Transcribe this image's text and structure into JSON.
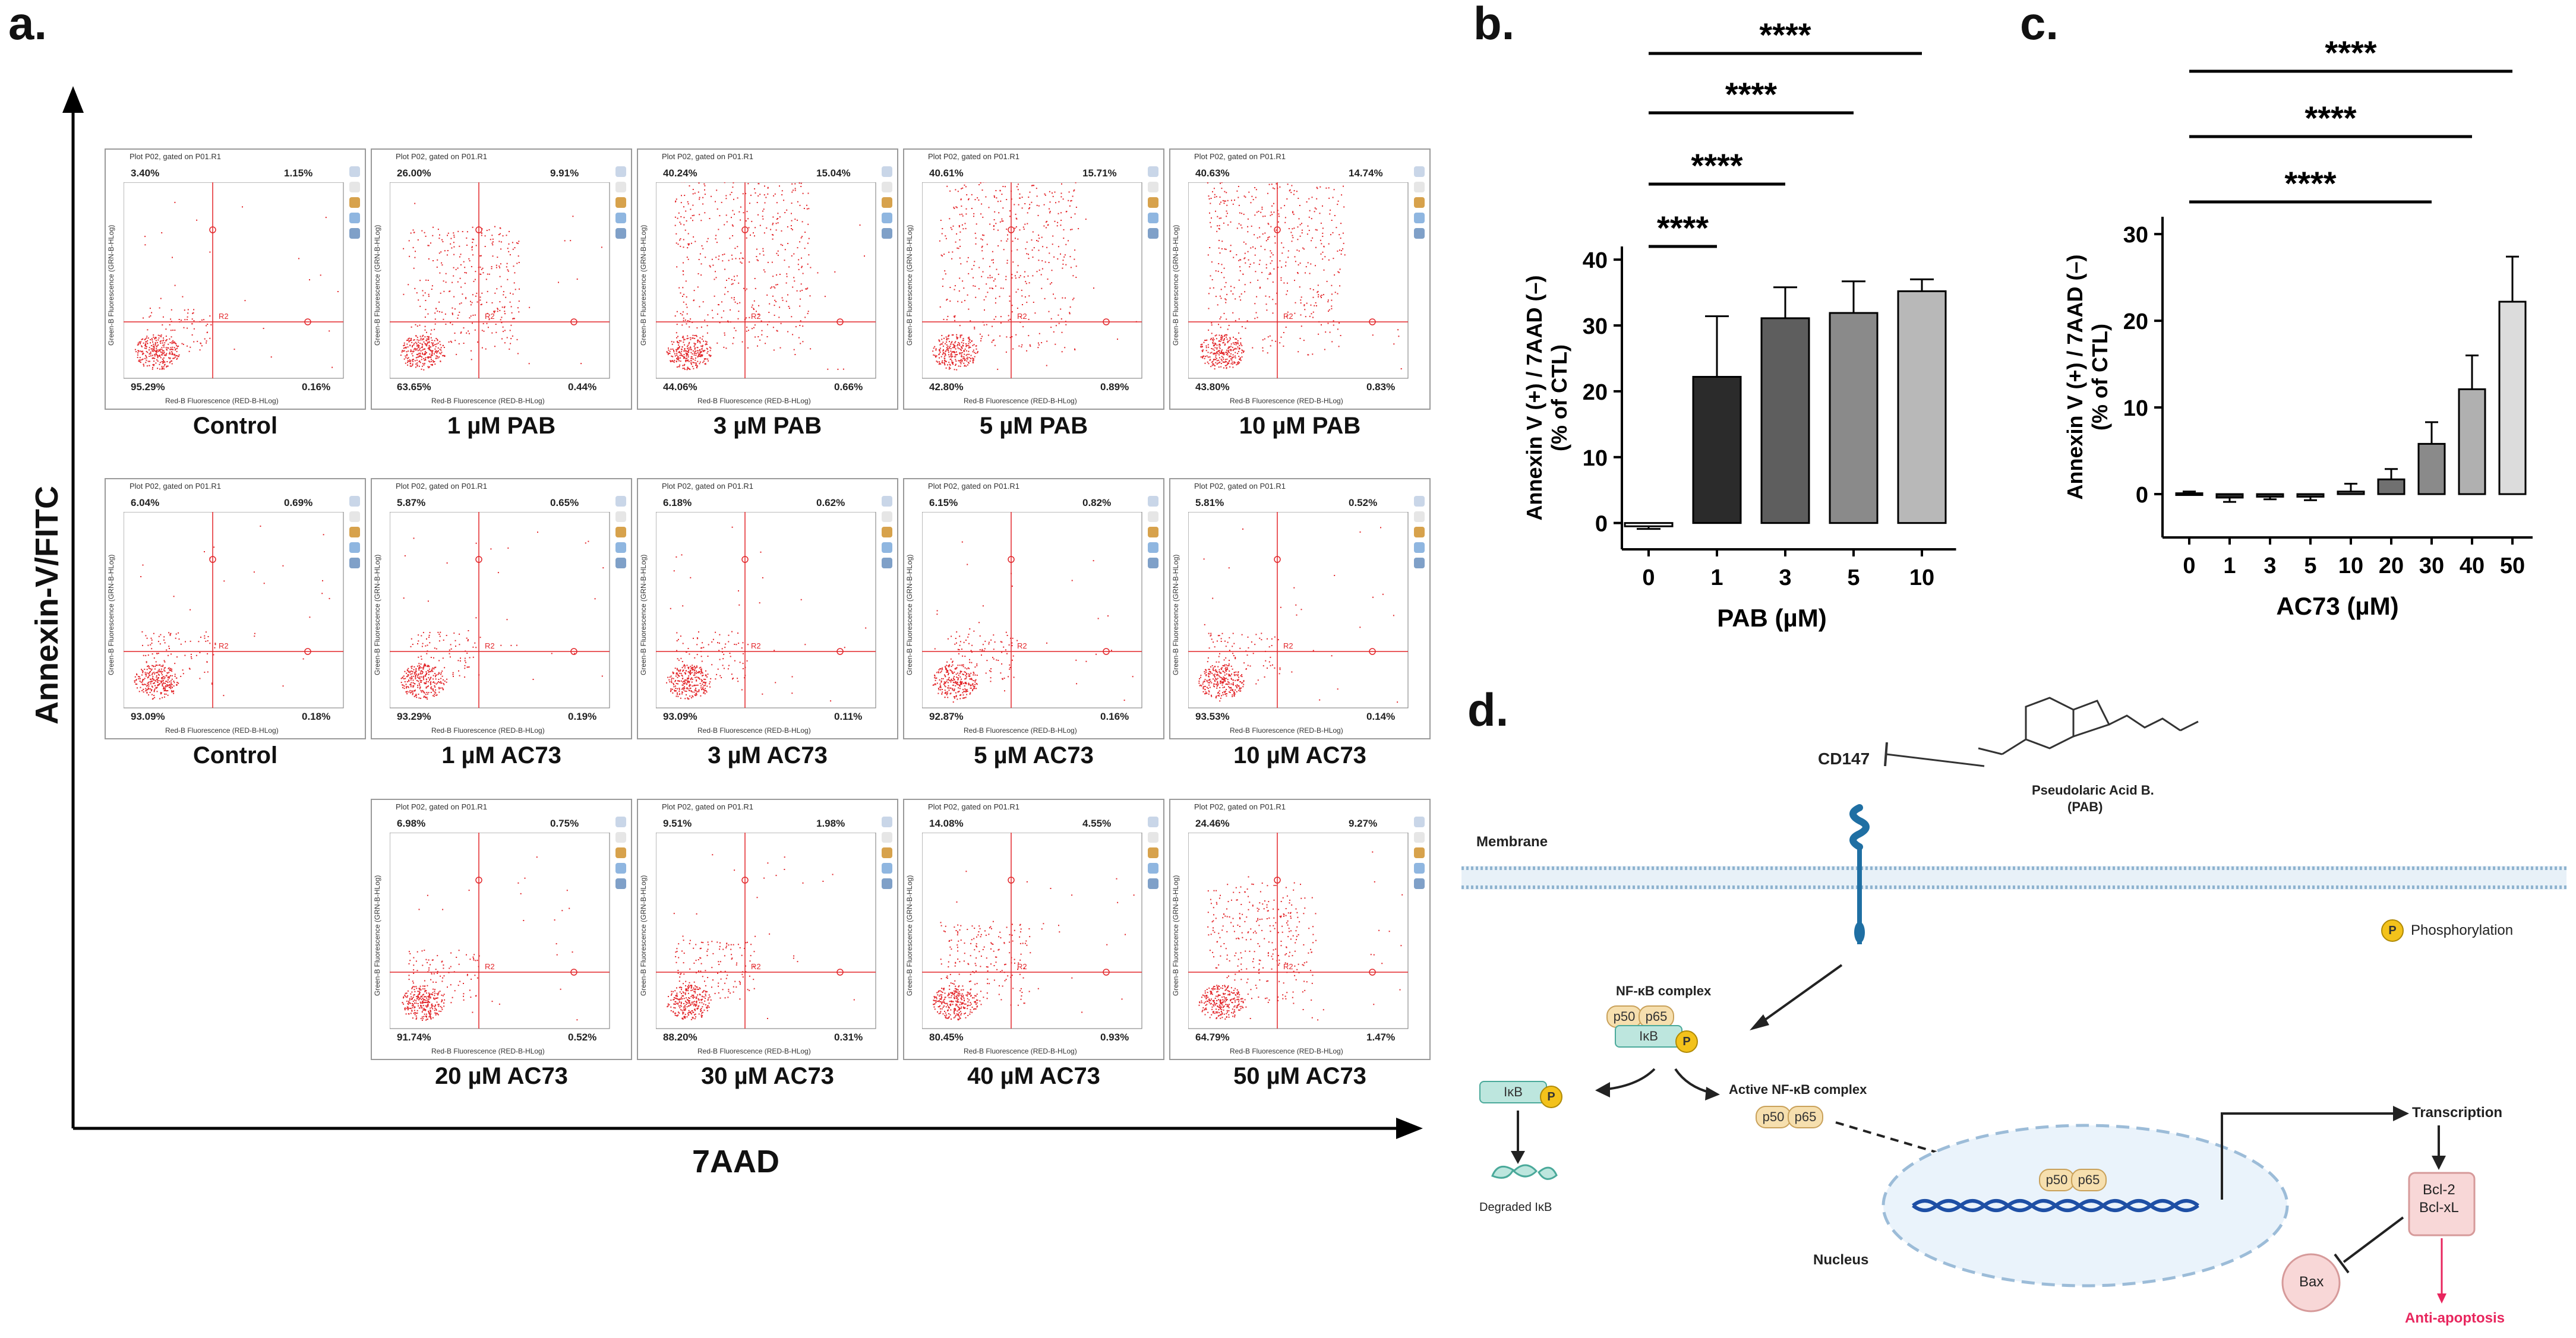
{
  "panel_a": {
    "letter": "a.",
    "y_axis": "Annexin-V/FITC",
    "x_axis": "7AAD",
    "plot_header": "Plot P02, gated on P01.R1",
    "plot_y_label": "Green-B Fluorescence (GRN-B-HLog)",
    "plot_x_label": "Red-B Fluorescence (RED-B-HLog)",
    "gate_label": "R2",
    "rows": [
      [
        {
          "label": "Control",
          "ul": "3.40%",
          "ur": "1.15%",
          "ll": "95.29%",
          "lr": "0.16%"
        },
        {
          "label": "1 µM PAB",
          "ul": "26.00%",
          "ur": "9.91%",
          "ll": "63.65%",
          "lr": "0.44%"
        },
        {
          "label": "3 µM PAB",
          "ul": "40.24%",
          "ur": "15.04%",
          "ll": "44.06%",
          "lr": "0.66%"
        },
        {
          "label": "5 µM PAB",
          "ul": "40.61%",
          "ur": "15.71%",
          "ll": "42.80%",
          "lr": "0.89%"
        },
        {
          "label": "10 µM PAB",
          "ul": "40.63%",
          "ur": "14.74%",
          "ll": "43.80%",
          "lr": "0.83%"
        }
      ],
      [
        {
          "label": "Control",
          "ul": "6.04%",
          "ur": "0.69%",
          "ll": "93.09%",
          "lr": "0.18%"
        },
        {
          "label": "1 µM AC73",
          "ul": "5.87%",
          "ur": "0.65%",
          "ll": "93.29%",
          "lr": "0.19%"
        },
        {
          "label": "3 µM AC73",
          "ul": "6.18%",
          "ur": "0.62%",
          "ll": "93.09%",
          "lr": "0.11%"
        },
        {
          "label": "5 µM AC73",
          "ul": "6.15%",
          "ur": "0.82%",
          "ll": "92.87%",
          "lr": "0.16%"
        },
        {
          "label": "10 µM AC73",
          "ul": "5.81%",
          "ur": "0.52%",
          "ll": "93.53%",
          "lr": "0.14%"
        }
      ],
      [
        {
          "label": "20 µM AC73",
          "ul": "6.98%",
          "ur": "0.75%",
          "ll": "91.74%",
          "lr": "0.52%"
        },
        {
          "label": "30 µM AC73",
          "ul": "9.51%",
          "ur": "1.98%",
          "ll": "88.20%",
          "lr": "0.31%"
        },
        {
          "label": "40 µM AC73",
          "ul": "14.08%",
          "ur": "4.55%",
          "ll": "80.45%",
          "lr": "0.93%"
        },
        {
          "label": "50 µM AC73",
          "ul": "24.46%",
          "ur": "9.27%",
          "ll": "64.79%",
          "lr": "1.47%"
        }
      ]
    ]
  },
  "chart_data": [
    {
      "panel": "b.",
      "type": "bar",
      "categories": [
        "0",
        "1",
        "3",
        "5",
        "10"
      ],
      "values": [
        -0.5,
        22.2,
        31.1,
        31.9,
        35.2
      ],
      "errors": [
        0.4,
        9.2,
        4.7,
        4.8,
        1.8
      ],
      "colors": [
        "#ffffff",
        "#2b2b2b",
        "#5e5e5e",
        "#8a8a8a",
        "#b8b8b8"
      ],
      "ylabel_line1": "Annexin V (+) / 7AAD (–)",
      "ylabel_line2": "(% of CTL)",
      "xlabel": "PAB (µM)",
      "yticks": [
        "0",
        "10",
        "20",
        "30",
        "40"
      ],
      "ylim": [
        -4,
        42
      ],
      "sig_label": "****",
      "significance": [
        [
          0,
          1
        ],
        [
          0,
          2
        ],
        [
          0,
          3
        ],
        [
          0,
          4
        ]
      ]
    },
    {
      "panel": "c.",
      "type": "bar",
      "categories": [
        "0",
        "1",
        "3",
        "5",
        "10",
        "20",
        "30",
        "40",
        "50"
      ],
      "values": [
        0.1,
        -0.4,
        -0.3,
        -0.3,
        0.3,
        1.7,
        5.8,
        12.1,
        22.2
      ],
      "errors": [
        0.2,
        0.5,
        0.3,
        0.4,
        0.9,
        1.2,
        2.5,
        3.9,
        5.2
      ],
      "colors": [
        "#ffffff",
        "#2b2b2b",
        "#3a3a3a",
        "#4a4a4a",
        "#5e5e5e",
        "#707070",
        "#8a8a8a",
        "#b0b0b0",
        "#dcdcdc"
      ],
      "ylabel_line1": "Annexin V (+) / 7AAD (–)",
      "ylabel_line2": "(% of CTL)",
      "xlabel": "AC73 (µM)",
      "yticks": [
        "0",
        "10",
        "20",
        "30"
      ],
      "ylim": [
        -5,
        32
      ],
      "sig_label": "****",
      "significance": [
        [
          0,
          6
        ],
        [
          0,
          7
        ],
        [
          0,
          8
        ]
      ]
    }
  ],
  "panel_d": {
    "letter": "d.",
    "cd147": "CD147",
    "drug_name": "Pseudolaric Acid B.",
    "drug_abbr": "(PAB)",
    "membrane": "Membrane",
    "phos_symbol": "P",
    "phosphorylation": "Phosphorylation",
    "nfkb_complex": "NF-κB complex",
    "p50": "p50",
    "p65": "p65",
    "ikb": "IκB",
    "degraded": "Degraded IκB",
    "active_complex": "Active NF-κB complex",
    "nucleus": "Nucleus",
    "transcription": "Transcription",
    "bcl2": "Bcl-2",
    "bclxl": "Bcl-xL",
    "bax": "Bax",
    "anti_apoptosis": "Anti-apoptosis"
  }
}
